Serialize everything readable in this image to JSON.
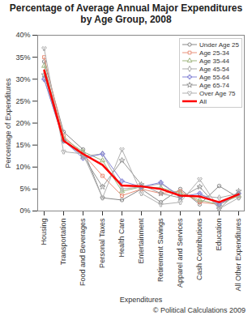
{
  "chart_data": {
    "type": "line",
    "title": "Percentage of Average Annual Major Expenditures by Age Group, 2008",
    "x_label": "Expenditures",
    "y_label": "Percentage of Expenditures",
    "caption": "© Political Calculations 2009",
    "categories": [
      "Housing",
      "Transportation",
      "Food and Beverages",
      "Personal Taxes",
      "Health Care",
      "Entertainment",
      "Retirement Savings",
      "Apparel and Services",
      "Cash Contributions",
      "Education",
      "All Other Expenditures"
    ],
    "series": [
      {
        "name": "Under Age 25",
        "color": "#888888",
        "marker": "circle",
        "line_style": "solid",
        "values": [
          34,
          18,
          14,
          3,
          2.5,
          5,
          2,
          5,
          1.5,
          5.7,
          3
        ]
      },
      {
        "name": "Age 25-34",
        "color": "#e8907a",
        "marker": "square",
        "line_style": "solid",
        "values": [
          35,
          17,
          13,
          8,
          3.5,
          5,
          4,
          4.5,
          2,
          1.5,
          3.5
        ]
      },
      {
        "name": "Age 35-44",
        "color": "#9fb57f",
        "marker": "triangle",
        "line_style": "solid",
        "values": [
          33,
          16.5,
          13.5,
          11.5,
          4.5,
          5.5,
          5.3,
          4,
          2.5,
          1.5,
          3.5
        ]
      },
      {
        "name": "Age 45-54",
        "color": "#aaaaaa",
        "marker": "diamond",
        "line_style": "solid",
        "values": [
          30,
          16,
          12.5,
          13,
          5,
          5.5,
          6.2,
          3.5,
          3.5,
          3,
          4
        ]
      },
      {
        "name": "Age 55-64",
        "color": "#8585d6",
        "marker": "cross",
        "line_style": "solid",
        "values": [
          30,
          16,
          12,
          13,
          6.8,
          5.5,
          6.5,
          3.2,
          4,
          1.5,
          4
        ]
      },
      {
        "name": "Age 65-74",
        "color": "#999999",
        "marker": "star",
        "line_style": "solid",
        "values": [
          31,
          16,
          12.5,
          5.5,
          11.5,
          6,
          4,
          3,
          5.5,
          0.5,
          4.5
        ]
      },
      {
        "name": "Over Age 75",
        "color": "#b0b0b0",
        "marker": "wye",
        "line_style": "solid",
        "values": [
          37,
          13.5,
          13,
          3,
          14,
          4,
          1.5,
          2,
          7.2,
          0.5,
          3
        ]
      },
      {
        "name": "All",
        "color": "#ff0000",
        "marker": "none",
        "line_style": "solid",
        "values": [
          32,
          16,
          13,
          10.5,
          5.8,
          5.6,
          5,
          3.5,
          3.3,
          2,
          3.8
        ]
      }
    ],
    "ylim": [
      0,
      40
    ],
    "yticks": [
      {
        "value": 0,
        "label": "0%"
      },
      {
        "value": 5,
        "label": "5%"
      },
      {
        "value": 10,
        "label": "10%"
      },
      {
        "value": 15,
        "label": "15%"
      },
      {
        "value": 20,
        "label": "20%"
      },
      {
        "value": 25,
        "label": "25%"
      },
      {
        "value": 30,
        "label": "30%"
      },
      {
        "value": 35,
        "label": "35%"
      },
      {
        "value": 40,
        "label": "40%"
      }
    ],
    "grid": false,
    "legend": "upper right"
  }
}
